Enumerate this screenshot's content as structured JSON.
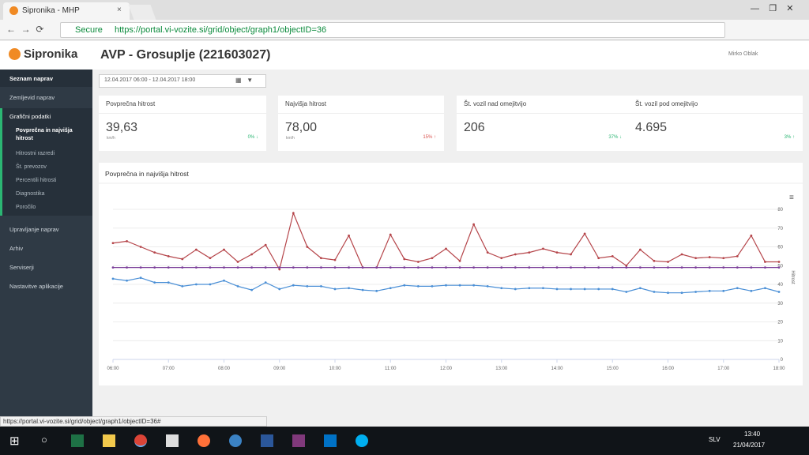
{
  "browser": {
    "tab_title": "Sipronika - MHP",
    "secure": "Secure",
    "url": "https://portal.vi-vozite.si/grid/object/graph1/objectID=36"
  },
  "app": {
    "logo": "Sipronika",
    "title": "AVP - Grosuplje (221603027)",
    "user": "Mirko Oblak"
  },
  "sidebar": {
    "top": [
      "Seznam naprav",
      "Zemljevid naprav"
    ],
    "group": {
      "label": "Grafični podatki",
      "items": [
        "Povprečna in najvišja hitrost",
        "Hitrostni razredi",
        "Št. prevozov",
        "Percentili hitrosti",
        "Diagnostika",
        "Poročilo"
      ]
    },
    "bottom": [
      "Upravljanje naprav",
      "Arhiv",
      "Serviserji",
      "Nastavitve aplikacije"
    ]
  },
  "filter": {
    "date_range": "12.04.2017 06:00 - 12.04.2017 18:00"
  },
  "cards": [
    {
      "label": "Povprečna hitrost",
      "value": "39,63",
      "unit": "km/h",
      "change": "0% ↓"
    },
    {
      "label": "Najvišja hitrost",
      "value": "78,00",
      "unit": "km/h",
      "change": "15% ↑"
    },
    {
      "label": "Št. vozil nad omejitvijo",
      "value": "206",
      "change": "37% ↓"
    },
    {
      "label": "Št. vozil pod omejitvijo",
      "value": "4.695",
      "change": "3% ↑"
    }
  ],
  "chart_data": {
    "type": "line",
    "title": "Povprečna in najvišja hitrost",
    "y_label": "Hitrost",
    "x": [
      6,
      6.25,
      6.5,
      6.75,
      7,
      7.25,
      7.5,
      7.75,
      8,
      8.25,
      8.5,
      8.75,
      9,
      9.25,
      9.5,
      9.75,
      10,
      10.25,
      10.5,
      10.75,
      11,
      11.25,
      11.5,
      11.75,
      12,
      12.25,
      12.5,
      12.75,
      13,
      13.25,
      13.5,
      13.75,
      14,
      14.25,
      14.5,
      14.75,
      15,
      15.25,
      15.5,
      15.75,
      16,
      16.25,
      16.5,
      16.75,
      17,
      17.25,
      17.5,
      17.75,
      18
    ],
    "series": [
      {
        "color": "#b5454a",
        "values": [
          62,
          63,
          60,
          57,
          55,
          53.5,
          58.5,
          54,
          58.5,
          52,
          56,
          61,
          48,
          78,
          60,
          54,
          53,
          66,
          49,
          49,
          66.5,
          53.5,
          52,
          54,
          59,
          52.5,
          72,
          57,
          54,
          56,
          57,
          59,
          57,
          56,
          67,
          54,
          55,
          50,
          58.5,
          52.5,
          52,
          56,
          54,
          54.5,
          54,
          55,
          66,
          52,
          52
        ]
      },
      {
        "color": "#4a8fd6",
        "values": [
          43,
          42,
          43.5,
          41,
          41,
          39,
          40,
          40,
          42,
          39,
          37,
          41,
          37.5,
          39.5,
          39,
          39,
          37.5,
          38,
          37,
          36.5,
          38,
          39.5,
          39,
          39,
          39.5,
          39.5,
          39.5,
          39,
          38,
          37.5,
          38,
          38,
          37.5,
          37.5,
          37.5,
          37.5,
          37.5,
          36,
          38,
          36,
          35.5,
          35.5,
          36,
          36.5,
          36.5,
          38,
          36.5,
          38,
          36
        ]
      },
      {
        "color": "#7b3f9a",
        "values": [
          49,
          49,
          49,
          49,
          49,
          49,
          49,
          49,
          49,
          49,
          49,
          49,
          49,
          49,
          49,
          49,
          49,
          49,
          49,
          49,
          49,
          49,
          49,
          49,
          49,
          49,
          49,
          49,
          49,
          49,
          49,
          49,
          49,
          49,
          49,
          49,
          49,
          49,
          49,
          49,
          49,
          49,
          49,
          49,
          49,
          49,
          49,
          49,
          49
        ]
      }
    ],
    "xlim": [
      6,
      18
    ],
    "xticks": [
      {
        "value": 6,
        "label": "06:00"
      },
      {
        "value": 7,
        "label": "07:00"
      },
      {
        "value": 8,
        "label": "08:00"
      },
      {
        "value": 9,
        "label": "09:00"
      },
      {
        "value": 10,
        "label": "10:00"
      },
      {
        "value": 11,
        "label": "11:00"
      },
      {
        "value": 12,
        "label": "12:00"
      },
      {
        "value": 13,
        "label": "13:00"
      },
      {
        "value": 14,
        "label": "14:00"
      },
      {
        "value": 15,
        "label": "15:00"
      },
      {
        "value": 16,
        "label": "16:00"
      },
      {
        "value": 17,
        "label": "17:00"
      },
      {
        "value": 18,
        "label": "18:00"
      }
    ],
    "ylim": [
      0,
      80
    ],
    "yticks": [
      0,
      10,
      20,
      30,
      40,
      50,
      60,
      70,
      80
    ],
    "grid": true
  },
  "status_bar": "https://portal.vi-vozite.si/grid/object/graph1/objectID=36#",
  "taskbar": {
    "language": "SLV",
    "time": "13:40",
    "date": "21/04/2017"
  }
}
